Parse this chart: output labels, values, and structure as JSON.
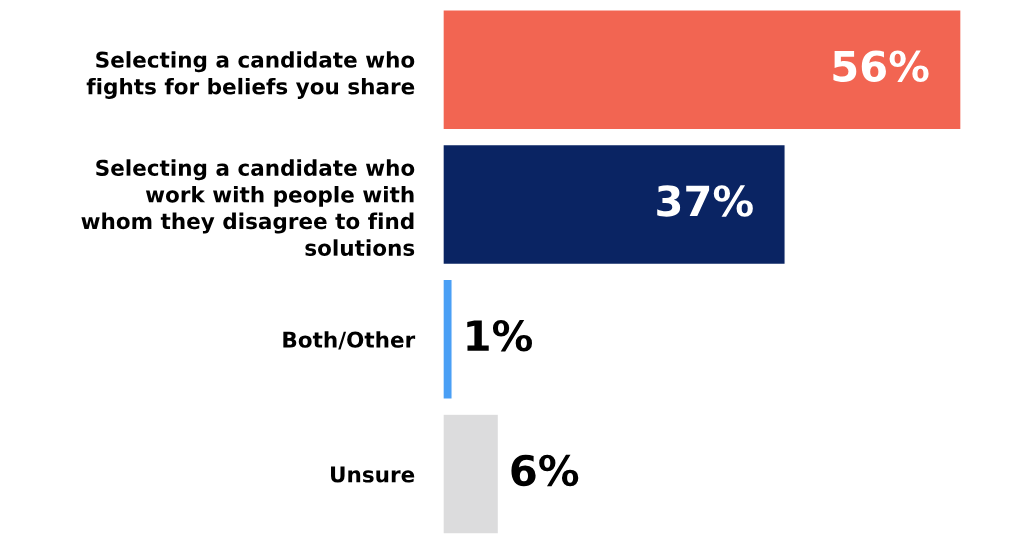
{
  "chart_data": {
    "type": "bar",
    "orientation": "horizontal",
    "categories": [
      "Selecting a candidate who\nfights for beliefs you share",
      "Selecting a candidate who\nwork with people with\nwhom they disagree to find\nsolutions",
      "Both/Other",
      "Unsure"
    ],
    "values": [
      56,
      37,
      1,
      6
    ],
    "colors": [
      "#f26552",
      "#0a2463",
      "#4a9ff5",
      "#dcdcdd"
    ],
    "value_labels": [
      "56%",
      "37%",
      "1%",
      "6%"
    ]
  }
}
